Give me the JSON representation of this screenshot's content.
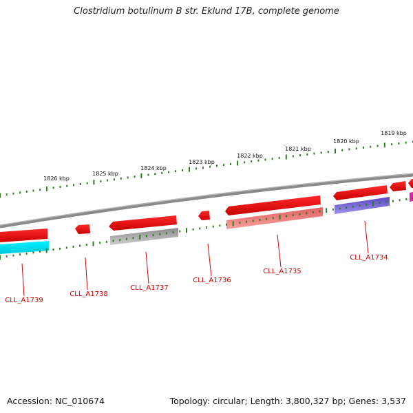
{
  "title": "Clostridium botulinum B str. Eklund 17B, complete genome",
  "accession_text": "Accession: NC_010674",
  "topology_text": "Topology: circular; Length: 3,800,327 bp; Genes: 3,537",
  "kbp_labels": [
    "1826 kbp",
    "1825 kbp",
    "1824 kbp",
    "1823 kbp",
    "1822 kbp",
    "1821 kbp",
    "1820 kbp",
    "1819 kbp"
  ],
  "gene_labels": [
    "CLL_A1739",
    "CLL_A1738",
    "CLL_A1737",
    "CLL_A1736",
    "CLL_A1735",
    "CLL_A1734"
  ],
  "colors": {
    "backbone": "#7a7a7a",
    "gene_red": "#ee0000",
    "tick_green": "#2f7d1f",
    "label_red": "#cc0000",
    "cyan": "#00e0f0",
    "gray": "#a8a8a8",
    "salmon": "#f08080",
    "purple": "#6f5ad0",
    "magenta": "#e020b0"
  }
}
